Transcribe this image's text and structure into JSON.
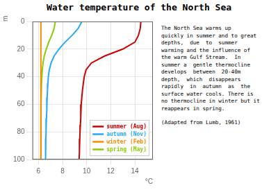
{
  "chart_data": {
    "type": "line",
    "title": "Water temperature of the North Sea",
    "xlabel": "°C",
    "ylabel": "m",
    "xlim": [
      5.5,
      15.5
    ],
    "ylim": [
      100,
      0
    ],
    "xticks": [
      6,
      8,
      10,
      12,
      14
    ],
    "yticks": [
      0,
      20,
      40,
      60,
      80,
      100
    ],
    "grid": true,
    "legend": "lower right",
    "annotations": [
      "The North Sea warms up",
      "quickly in summer and to great",
      "depths,  due  to  summer",
      "warming and the influence of",
      "the warm Gulf Stream.  In",
      "summer a  gentle thermocline",
      "develops  between  20-40m",
      "depth,  which  disappears",
      "rapidly  in  autumn  as  the",
      "surface water cools. There is",
      "no thermocline in winter but it",
      "reappears in spring.",
      "(Adapted from Lumb, 1961)"
    ],
    "series": [
      {
        "name": "summer (Aug)",
        "color": "#cc0000",
        "x": [
          14.5,
          14.45,
          14.3,
          14.0,
          13.0,
          11.5,
          10.4,
          9.95,
          9.8,
          9.72,
          9.65,
          9.6,
          9.55,
          9.52,
          9.5,
          9.48,
          9.45,
          9.43,
          9.41,
          9.39,
          9.37
        ],
        "values": [
          0,
          5,
          10,
          15,
          20,
          25,
          30,
          35,
          40,
          45,
          50,
          55,
          60,
          65,
          70,
          75,
          80,
          85,
          90,
          95,
          100
        ]
      },
      {
        "name": "autumn (Nov)",
        "color": "#22aaff",
        "x": [
          9.6,
          9.3,
          8.8,
          8.2,
          7.7,
          7.3,
          7.05,
          6.9,
          6.82,
          6.78,
          6.75,
          6.72,
          6.7,
          6.68,
          6.66,
          6.64,
          6.62,
          6.61,
          6.6,
          6.59,
          6.58
        ],
        "values": [
          0,
          5,
          10,
          15,
          20,
          25,
          30,
          35,
          40,
          45,
          50,
          55,
          60,
          65,
          70,
          75,
          80,
          85,
          90,
          95,
          100
        ]
      },
      {
        "name": "winter (Feb)",
        "color": "#ff8800",
        "x": [
          6.2,
          6.2,
          6.2,
          6.2,
          6.2,
          6.2,
          6.2,
          6.2,
          6.2,
          6.2,
          6.2,
          6.2,
          6.2,
          6.2,
          6.2,
          6.2,
          6.2,
          6.2,
          6.2,
          6.2,
          6.2
        ],
        "values": [
          0,
          5,
          10,
          15,
          20,
          25,
          30,
          35,
          40,
          45,
          50,
          55,
          60,
          65,
          70,
          75,
          80,
          85,
          90,
          95,
          100
        ]
      },
      {
        "name": "spring (May)",
        "color": "#88cc00",
        "x": [
          7.4,
          7.3,
          7.1,
          6.85,
          6.65,
          6.48,
          6.38,
          6.32,
          6.28,
          6.25,
          6.23,
          6.22,
          6.21,
          6.2,
          6.2,
          6.2,
          6.2,
          6.2,
          6.2,
          6.2,
          6.2
        ],
        "values": [
          0,
          5,
          10,
          15,
          20,
          25,
          30,
          35,
          40,
          45,
          50,
          55,
          60,
          65,
          70,
          75,
          80,
          85,
          90,
          95,
          100
        ]
      }
    ]
  }
}
